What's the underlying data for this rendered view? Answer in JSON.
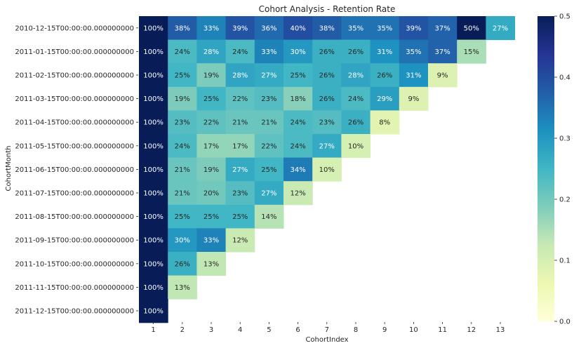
{
  "chart_data": {
    "type": "heatmap",
    "title": "Cohort Analysis - Retention Rate",
    "xlabel": "CohortIndex",
    "ylabel": "CohortMonth",
    "x_categories": [
      "1",
      "2",
      "3",
      "4",
      "5",
      "6",
      "7",
      "8",
      "9",
      "10",
      "11",
      "12",
      "13"
    ],
    "y_categories": [
      "2010-12-15T00:00:00.000000000",
      "2011-01-15T00:00:00.000000000",
      "2011-02-15T00:00:00.000000000",
      "2011-03-15T00:00:00.000000000",
      "2011-04-15T00:00:00.000000000",
      "2011-05-15T00:00:00.000000000",
      "2011-06-15T00:00:00.000000000",
      "2011-07-15T00:00:00.000000000",
      "2011-08-15T00:00:00.000000000",
      "2011-09-15T00:00:00.000000000",
      "2011-10-15T00:00:00.000000000",
      "2011-11-15T00:00:00.000000000",
      "2011-12-15T00:00:00.000000000"
    ],
    "values": [
      [
        1.0,
        0.38,
        0.33,
        0.39,
        0.36,
        0.4,
        0.38,
        0.35,
        0.35,
        0.39,
        0.37,
        0.5,
        0.27
      ],
      [
        1.0,
        0.24,
        0.28,
        0.24,
        0.33,
        0.3,
        0.26,
        0.26,
        0.31,
        0.35,
        0.37,
        0.15
      ],
      [
        1.0,
        0.25,
        0.19,
        0.28,
        0.27,
        0.25,
        0.26,
        0.28,
        0.26,
        0.31,
        0.09
      ],
      [
        1.0,
        0.19,
        0.25,
        0.22,
        0.23,
        0.18,
        0.26,
        0.24,
        0.29,
        0.09
      ],
      [
        1.0,
        0.23,
        0.22,
        0.21,
        0.21,
        0.24,
        0.23,
        0.26,
        0.08
      ],
      [
        1.0,
        0.24,
        0.17,
        0.17,
        0.22,
        0.24,
        0.27,
        0.1
      ],
      [
        1.0,
        0.21,
        0.19,
        0.27,
        0.25,
        0.34,
        0.1
      ],
      [
        1.0,
        0.21,
        0.2,
        0.23,
        0.27,
        0.12
      ],
      [
        1.0,
        0.25,
        0.25,
        0.25,
        0.14
      ],
      [
        1.0,
        0.3,
        0.33,
        0.12
      ],
      [
        1.0,
        0.26,
        0.13
      ],
      [
        1.0,
        0.13
      ],
      [
        1.0
      ]
    ],
    "value_format": "percent",
    "colormap": "YlGnBu",
    "vmin": 0.0,
    "vmax": 0.5,
    "colorbar_ticks": [
      "0.0",
      "0.1",
      "0.2",
      "0.3",
      "0.4",
      "0.5"
    ],
    "grid": false,
    "legend": "colorbar-right"
  }
}
